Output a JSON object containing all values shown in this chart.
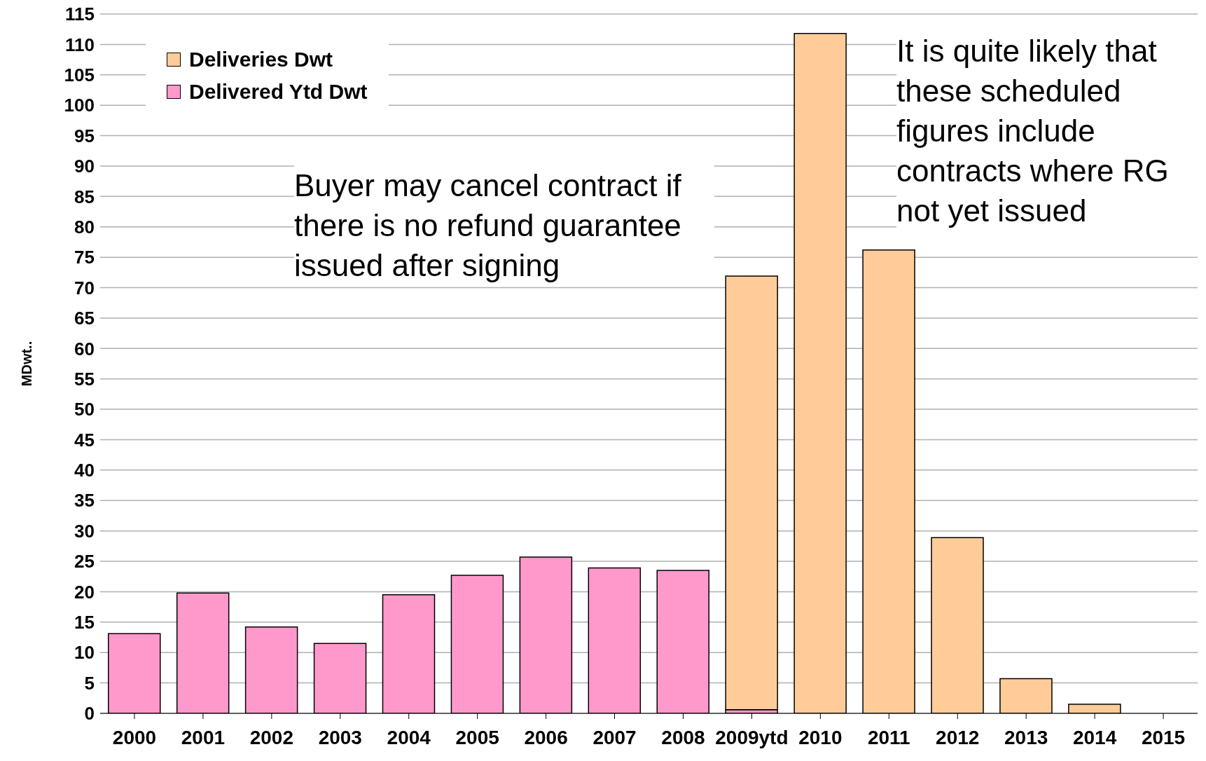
{
  "chart_data": {
    "type": "bar",
    "ylabel": "MDwt..",
    "categories": [
      "2000",
      "2001",
      "2002",
      "2003",
      "2004",
      "2005",
      "2006",
      "2007",
      "2008",
      "2009ytd",
      "2010",
      "2011",
      "2012",
      "2013",
      "2014",
      "2015"
    ],
    "stacked": true,
    "series": [
      {
        "name": "Delivered Ytd Dwt",
        "color": "#ff99cc",
        "values": [
          13.1,
          19.8,
          14.2,
          11.5,
          19.5,
          22.7,
          25.7,
          23.9,
          23.5,
          0.6,
          null,
          null,
          null,
          null,
          null,
          null
        ]
      },
      {
        "name": "Deliveries Dwt",
        "color": "#ffcc99",
        "values": [
          null,
          null,
          null,
          null,
          null,
          null,
          null,
          null,
          null,
          71.3,
          111.8,
          76.2,
          28.9,
          5.7,
          1.5,
          null
        ]
      }
    ],
    "ylim": [
      0,
      115
    ],
    "yticks": [
      0,
      5,
      10,
      15,
      20,
      25,
      30,
      35,
      40,
      45,
      50,
      55,
      60,
      65,
      70,
      75,
      80,
      85,
      90,
      95,
      100,
      105,
      110,
      115
    ],
    "grid": "y",
    "legend": "top left",
    "annotations": [
      "Buyer may cancel contract if there is no refund guarantee issued after signing",
      "It is quite likely that these scheduled figures include contracts where RG not yet issued"
    ]
  }
}
